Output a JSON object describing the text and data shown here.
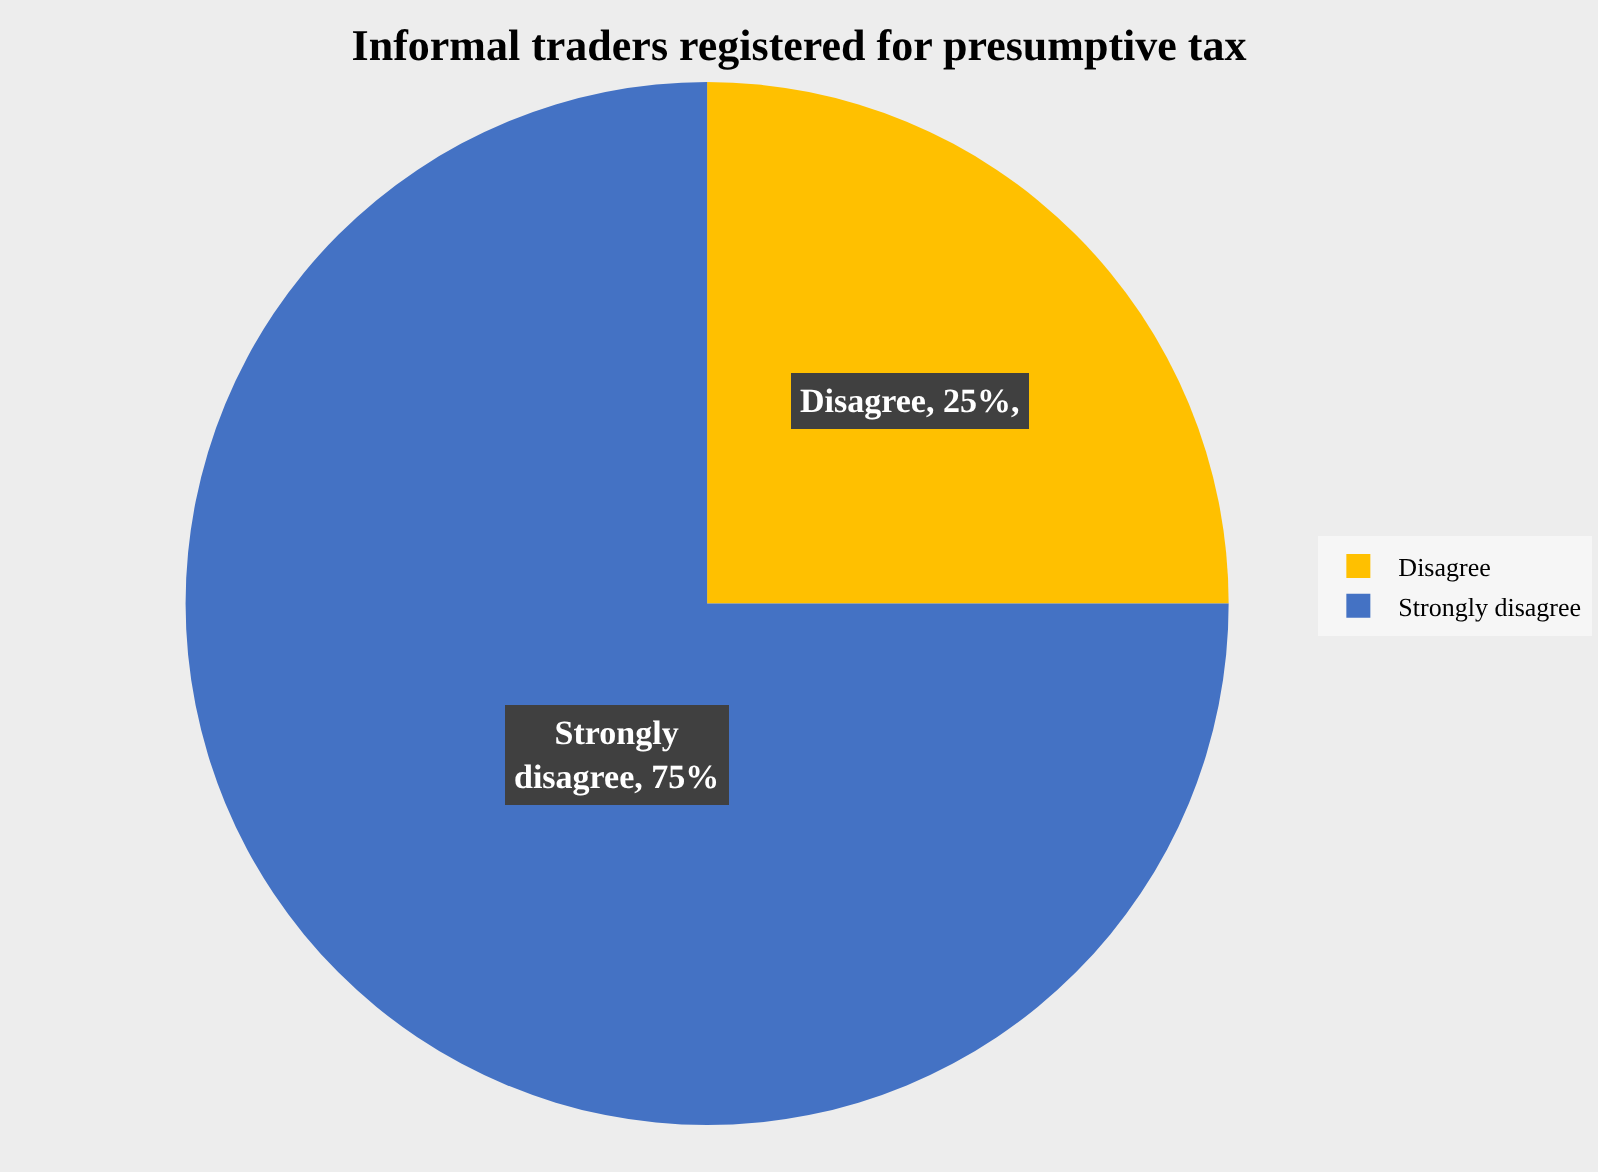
{
  "chart_data": {
    "type": "pie",
    "title": "Informal traders registered for presumptive tax",
    "categories": [
      "Disagree",
      "Strongly disagree"
    ],
    "values": [
      25,
      75
    ],
    "colors": [
      "#ffc000",
      "#4472c4"
    ],
    "value_labels": [
      "Disagree, 25%,",
      "Strongly disagree, 75%"
    ],
    "legend": "right"
  }
}
